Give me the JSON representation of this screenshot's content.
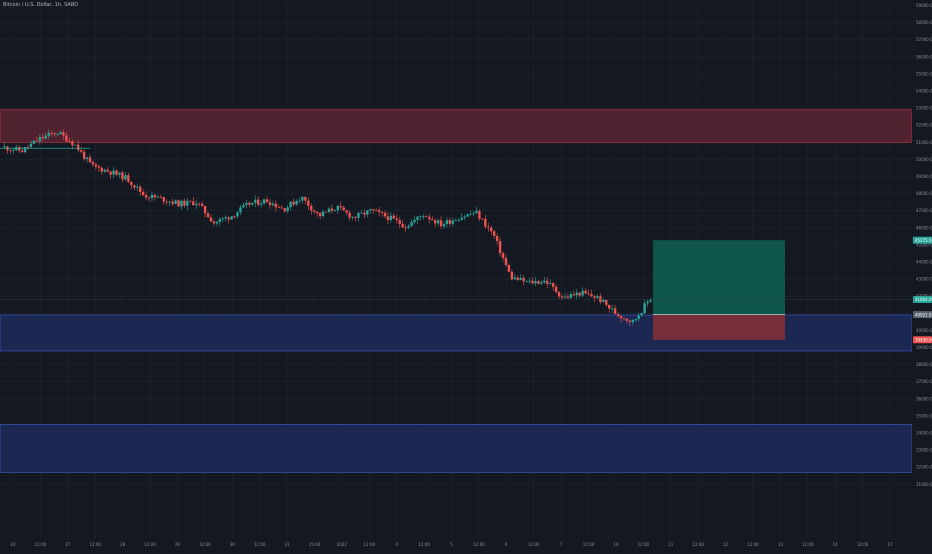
{
  "header": {
    "title": "Bitcoin / U.S. Dollar, 1h, SABO"
  },
  "colors": {
    "background": "#141821",
    "grid": "#1f2430",
    "bull": "#26a69a",
    "bear": "#ef5350",
    "resistance_zone": "#5b2330",
    "support_zone": "#1d2b5a",
    "target_zone": "#0d5c50",
    "stop_zone": "#7d2f38",
    "axis_text": "#8c909c"
  },
  "price_axis": {
    "labels": [
      "59000.0",
      "58000.0",
      "57000.0",
      "56000.0",
      "55000.0",
      "54000.0",
      "53000.0",
      "52000.0",
      "51000.0",
      "50000.0",
      "49000.0",
      "48000.0",
      "47000.0",
      "46000.0",
      "45000.0",
      "44000.0",
      "43000.0",
      "42000.0",
      "41000.0",
      "40000.0",
      "39000.0",
      "38000.0",
      "37000.0",
      "36000.0",
      "35000.0",
      "34000.0",
      "33000.0",
      "32000.0",
      "31000.0"
    ],
    "badges": [
      {
        "name": "target-price-badge",
        "text": "45275.0",
        "value": 45275,
        "color": "#26a69a"
      },
      {
        "name": "last-price-badge",
        "text": "41804.0",
        "value": 41804,
        "color": "#26a69a"
      },
      {
        "name": "entry-price-badge",
        "text": "40921.0",
        "value": 40921,
        "color": "#5a6373"
      },
      {
        "name": "stop-price-badge",
        "text": "39450.0",
        "value": 39450,
        "color": "#ef5350"
      }
    ]
  },
  "time_axis": {
    "labels": [
      "24",
      "12:00",
      "27",
      "12:00",
      "28",
      "12:00",
      "29",
      "12:00",
      "30",
      "12:00",
      "31",
      "15:00",
      "2022",
      "12:00",
      "4",
      "12:00",
      "5",
      "12:00",
      "6",
      "12:00",
      "7",
      "12:00",
      "10",
      "12:00",
      "11",
      "12:00",
      "12",
      "12:00",
      "13",
      "12:00",
      "14",
      "12:00",
      "17"
    ]
  },
  "zones": [
    {
      "name": "resistance-zone",
      "top": 52900,
      "bottom": 51000
    },
    {
      "name": "support-zone-upper",
      "top": 40900,
      "bottom": 38800
    },
    {
      "name": "support-zone-lower",
      "top": 34500,
      "bottom": 31700
    }
  ],
  "position": {
    "entry": 40921,
    "target": 45275,
    "stop": 39450
  },
  "chart_data": {
    "type": "candlestick",
    "title": "Bitcoin / U.S. Dollar, 1h, SABO",
    "ylim": [
      31000,
      59500
    ],
    "key_prices": [
      50700,
      50500,
      51200,
      51600,
      50900,
      49600,
      49300,
      48900,
      47900,
      47700,
      47400,
      47500,
      46300,
      46700,
      47400,
      47600,
      47100,
      47800,
      46700,
      47200,
      46600,
      47000,
      46600,
      46100,
      46800,
      46200,
      46600,
      46900,
      45600,
      43100,
      42800,
      42900,
      41900,
      42200,
      41900,
      41000,
      40500,
      41900
    ],
    "last_price": 41804
  }
}
